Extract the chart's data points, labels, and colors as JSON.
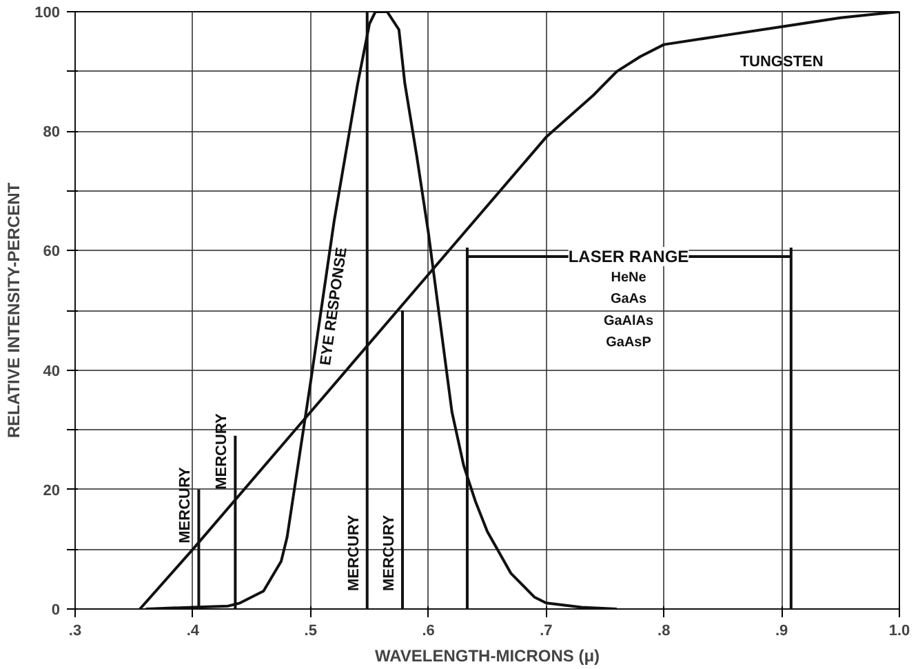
{
  "chart_data": {
    "type": "line",
    "xlabel": "WAVELENGTH-MICRONS (μ)",
    "ylabel": "RELATIVE INTENSITY-PERCENT",
    "xlim": [
      0.3,
      1.0
    ],
    "ylim": [
      0,
      100
    ],
    "xticks": [
      {
        "value": 0.3,
        "label": ".3"
      },
      {
        "value": 0.4,
        "label": ".4"
      },
      {
        "value": 0.5,
        "label": ".5"
      },
      {
        "value": 0.6,
        "label": ".6"
      },
      {
        "value": 0.7,
        "label": ".7"
      },
      {
        "value": 0.8,
        "label": ".8"
      },
      {
        "value": 0.9,
        "label": ".9"
      },
      {
        "value": 1.0,
        "label": "1.0"
      }
    ],
    "yticks": [
      0,
      {
        "value": 10,
        "label": null
      },
      20,
      {
        "value": 30,
        "label": null
      },
      40,
      {
        "value": 50,
        "label": null
      },
      60,
      {
        "value": 70,
        "label": null
      },
      80,
      {
        "value": 90,
        "label": null
      },
      100
    ],
    "grid": true,
    "line_style": "solid",
    "marker": "none",
    "series": [
      {
        "name": "TUNGSTEN",
        "color": "#111111",
        "x": [
          0.355,
          0.4,
          0.5,
          0.6,
          0.7,
          0.74,
          0.76,
          0.78,
          0.8,
          0.85,
          0.9,
          0.95,
          1.0
        ],
        "values": [
          0,
          10,
          33,
          56,
          79,
          86,
          90,
          92.5,
          94.5,
          96,
          97.5,
          99,
          100
        ]
      },
      {
        "name": "EYE RESPONSE",
        "color": "#111111",
        "x": [
          0.36,
          0.4,
          0.43,
          0.44,
          0.46,
          0.475,
          0.48,
          0.49,
          0.5,
          0.52,
          0.54,
          0.55,
          0.555,
          0.565,
          0.575,
          0.58,
          0.59,
          0.6,
          0.61,
          0.62,
          0.63,
          0.64,
          0.65,
          0.67,
          0.69,
          0.7,
          0.73,
          0.76
        ],
        "values": [
          0,
          0.3,
          0.5,
          1,
          3,
          8,
          12,
          25,
          38,
          65,
          88,
          98,
          100,
          100,
          97,
          88,
          76,
          63,
          48,
          33,
          24,
          18,
          13,
          6,
          2,
          1,
          0.3,
          0
        ]
      },
      {
        "name": "MERCURY",
        "color": "#111111",
        "x": [
          0.405,
          0.405
        ],
        "values": [
          0,
          20
        ]
      },
      {
        "name": "MERCURY",
        "color": "#111111",
        "x": [
          0.436,
          0.436
        ],
        "values": [
          0,
          29
        ]
      },
      {
        "name": "MERCURY",
        "color": "#111111",
        "x": [
          0.548,
          0.548
        ],
        "values": [
          0,
          100
        ]
      },
      {
        "name": "MERCURY",
        "color": "#111111",
        "x": [
          0.578,
          0.578
        ],
        "values": [
          0,
          50
        ]
      },
      {
        "color": "#111111",
        "x": [
          0.633,
          0.633
        ],
        "values": [
          0,
          60.5
        ]
      },
      {
        "color": "#111111",
        "x": [
          0.908,
          0.908
        ],
        "values": [
          0,
          60.5
        ]
      },
      {
        "color": "#111111",
        "x": [
          0.633,
          0.908
        ],
        "values": [
          59,
          59
        ]
      }
    ],
    "annotations": [
      {
        "text": "LASER RANGE",
        "x": 0.77,
        "y": 59
      },
      "HeNe",
      "GaAs",
      "GaAlAs",
      "GaAsP"
    ]
  }
}
